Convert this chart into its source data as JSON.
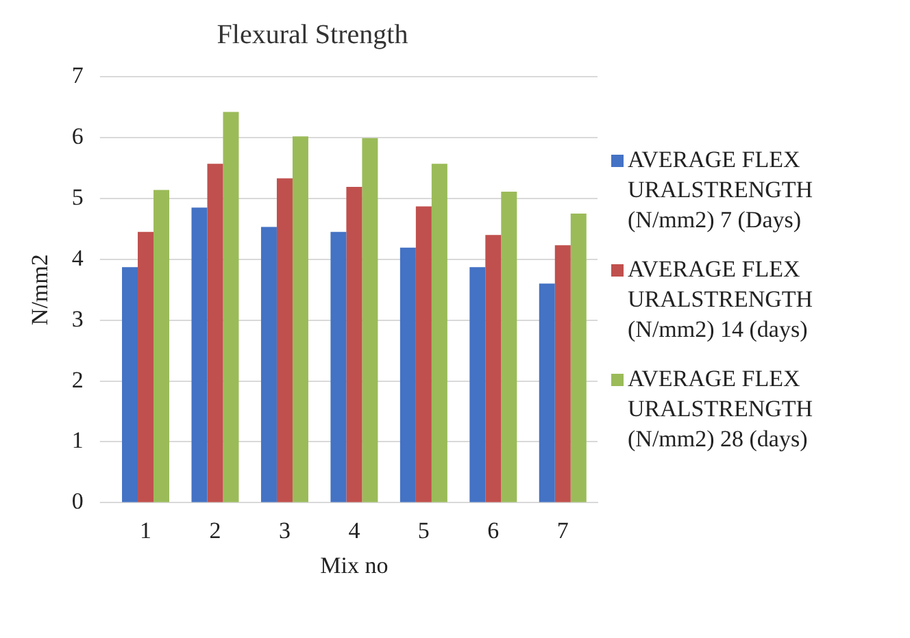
{
  "chart_data": {
    "type": "bar",
    "title": "Flexural Strength",
    "xlabel": "Mix no",
    "ylabel": "N/mm2",
    "categories": [
      "1",
      "2",
      "3",
      "4",
      "5",
      "6",
      "7"
    ],
    "series": [
      {
        "name": "AVERAGE FLEXURALSTRENGTH (N/mm2) 7 (Days)",
        "color": "#4472c4",
        "values": [
          3.87,
          4.85,
          4.53,
          4.45,
          4.19,
          3.87,
          3.6
        ]
      },
      {
        "name": "AVERAGE FLEXURALSTRENGTH (N/mm2) 14 (days)",
        "color": "#c0504d",
        "values": [
          4.45,
          5.57,
          5.33,
          5.19,
          4.87,
          4.4,
          4.23
        ]
      },
      {
        "name": "AVERAGE FLEXURALSTRENGTH (N/mm2) 28 (days)",
        "color": "#9bbb59",
        "values": [
          5.14,
          6.42,
          6.02,
          5.99,
          5.57,
          5.11,
          4.75
        ]
      }
    ],
    "ylim": [
      0,
      7
    ],
    "yticks": [
      0,
      1,
      2,
      3,
      4,
      5,
      6,
      7
    ],
    "grid": "y",
    "legend": "right"
  }
}
